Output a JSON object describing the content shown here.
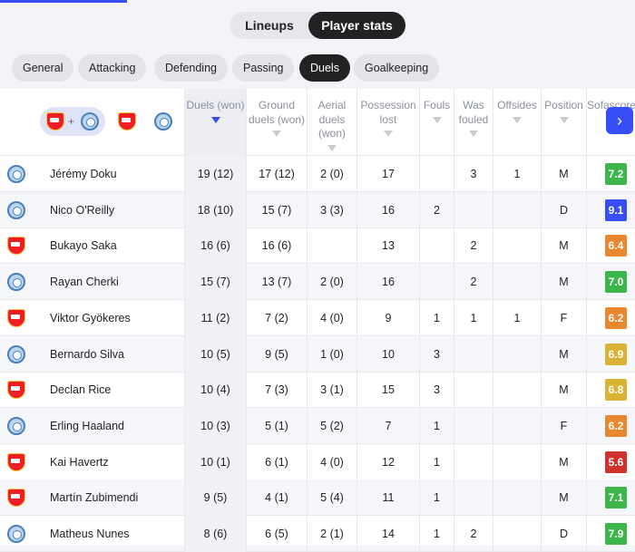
{
  "view_toggle": {
    "lineups": "Lineups",
    "player_stats": "Player stats"
  },
  "categories": [
    "General",
    "Attacking",
    "Defending",
    "Passing",
    "Duels",
    "Goalkeeping"
  ],
  "active_category": "Duels",
  "columns": {
    "duels": "Duels (won)",
    "ground": "Ground duels (won)",
    "aerial": "Aerial duels (won)",
    "possession": "Possession lost",
    "fouls": "Fouls",
    "fouled": "Was fouled",
    "offsides": "Offsides",
    "position": "Position",
    "rating": "Sofascore Rating"
  },
  "players": [
    {
      "team": "mci",
      "name": "Jérémy Doku",
      "duels": "19 (12)",
      "ground": "17 (12)",
      "aerial": "2 (0)",
      "possession": "17",
      "fouls": "",
      "fouled": "3",
      "offsides": "1",
      "position": "M",
      "rating": "7.2",
      "rating_color": "#3cb54a"
    },
    {
      "team": "mci",
      "name": "Nico O'Reilly",
      "duels": "18 (10)",
      "ground": "15 (7)",
      "aerial": "3 (3)",
      "possession": "16",
      "fouls": "2",
      "fouled": "",
      "offsides": "",
      "position": "D",
      "rating": "9.1",
      "rating_color": "#374df5"
    },
    {
      "team": "ars",
      "name": "Bukayo Saka",
      "duels": "16 (6)",
      "ground": "16 (6)",
      "aerial": "",
      "possession": "13",
      "fouls": "",
      "fouled": "2",
      "offsides": "",
      "position": "M",
      "rating": "6.4",
      "rating_color": "#e8872e"
    },
    {
      "team": "mci",
      "name": "Rayan Cherki",
      "duels": "15 (7)",
      "ground": "13 (7)",
      "aerial": "2 (0)",
      "possession": "16",
      "fouls": "",
      "fouled": "2",
      "offsides": "",
      "position": "M",
      "rating": "7.0",
      "rating_color": "#3cb54a"
    },
    {
      "team": "ars",
      "name": "Viktor Gyökeres",
      "duels": "11 (2)",
      "ground": "7 (2)",
      "aerial": "4 (0)",
      "possession": "9",
      "fouls": "1",
      "fouled": "1",
      "offsides": "1",
      "position": "F",
      "rating": "6.2",
      "rating_color": "#e8872e"
    },
    {
      "team": "mci",
      "name": "Bernardo Silva",
      "duels": "10 (5)",
      "ground": "9 (5)",
      "aerial": "1 (0)",
      "possession": "10",
      "fouls": "3",
      "fouled": "",
      "offsides": "",
      "position": "M",
      "rating": "6.9",
      "rating_color": "#d9b236"
    },
    {
      "team": "ars",
      "name": "Declan Rice",
      "duels": "10 (4)",
      "ground": "7 (3)",
      "aerial": "3 (1)",
      "possession": "15",
      "fouls": "3",
      "fouled": "",
      "offsides": "",
      "position": "M",
      "rating": "6.8",
      "rating_color": "#d9b236"
    },
    {
      "team": "mci",
      "name": "Erling Haaland",
      "duels": "10 (3)",
      "ground": "5 (1)",
      "aerial": "5 (2)",
      "possession": "7",
      "fouls": "1",
      "fouled": "",
      "offsides": "",
      "position": "F",
      "rating": "6.2",
      "rating_color": "#e8872e"
    },
    {
      "team": "ars",
      "name": "Kai Havertz",
      "duels": "10 (1)",
      "ground": "6 (1)",
      "aerial": "4 (0)",
      "possession": "12",
      "fouls": "1",
      "fouled": "",
      "offsides": "",
      "position": "M",
      "rating": "5.6",
      "rating_color": "#d2322d"
    },
    {
      "team": "ars",
      "name": "Martín Zubimendi",
      "duels": "9 (5)",
      "ground": "4 (1)",
      "aerial": "5 (4)",
      "possession": "11",
      "fouls": "1",
      "fouled": "",
      "offsides": "",
      "position": "M",
      "rating": "7.1",
      "rating_color": "#3cb54a"
    },
    {
      "team": "mci",
      "name": "Matheus Nunes",
      "duels": "8 (6)",
      "ground": "6 (5)",
      "aerial": "2 (1)",
      "possession": "14",
      "fouls": "1",
      "fouled": "2",
      "offsides": "",
      "position": "D",
      "rating": "7.9",
      "rating_color": "#3cb54a"
    }
  ]
}
